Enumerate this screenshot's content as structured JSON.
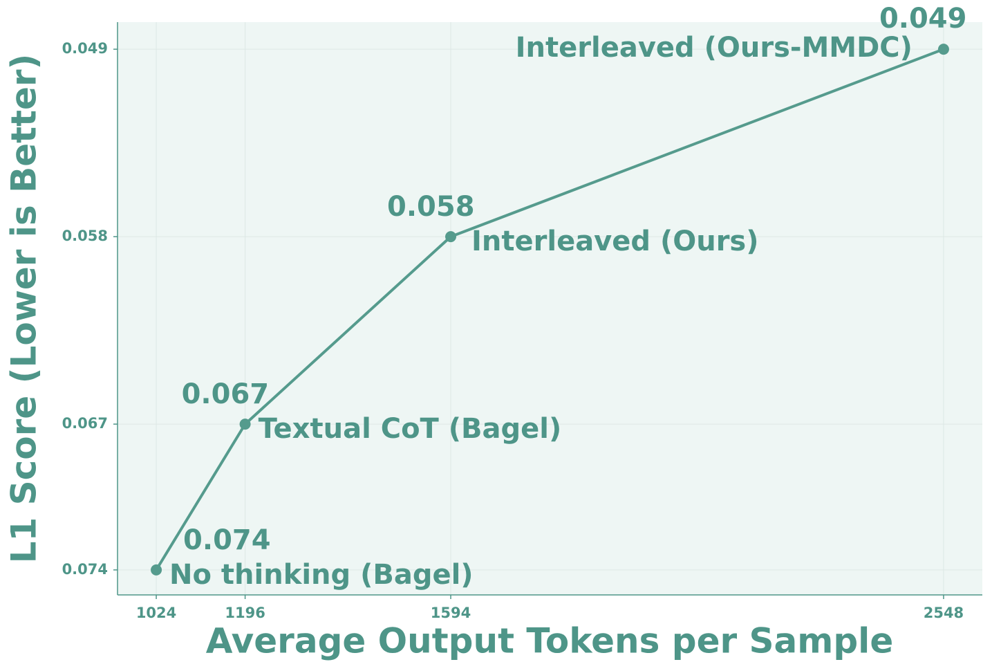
{
  "chart_data": {
    "type": "line",
    "x_label": "Average Output Tokens per Sample",
    "y_label": "L1 Score (Lower is Better)",
    "x": [
      1024,
      1196,
      1594,
      2548
    ],
    "values": [
      0.074,
      0.067,
      0.058,
      0.049
    ],
    "point_labels": [
      "No thinking (Bagel)",
      "Textual CoT (Bagel)",
      "Interleaved (Ours)",
      "Interleaved (Ours-MMDC)"
    ],
    "color": "#559b8d",
    "xlim": [
      949,
      2623
    ],
    "xticks": [
      1024,
      1196,
      1594,
      2548
    ],
    "ylim": [
      0.0752,
      0.0477
    ],
    "yticks": [
      0.049,
      0.058,
      0.067,
      0.074
    ],
    "grid": true
  }
}
